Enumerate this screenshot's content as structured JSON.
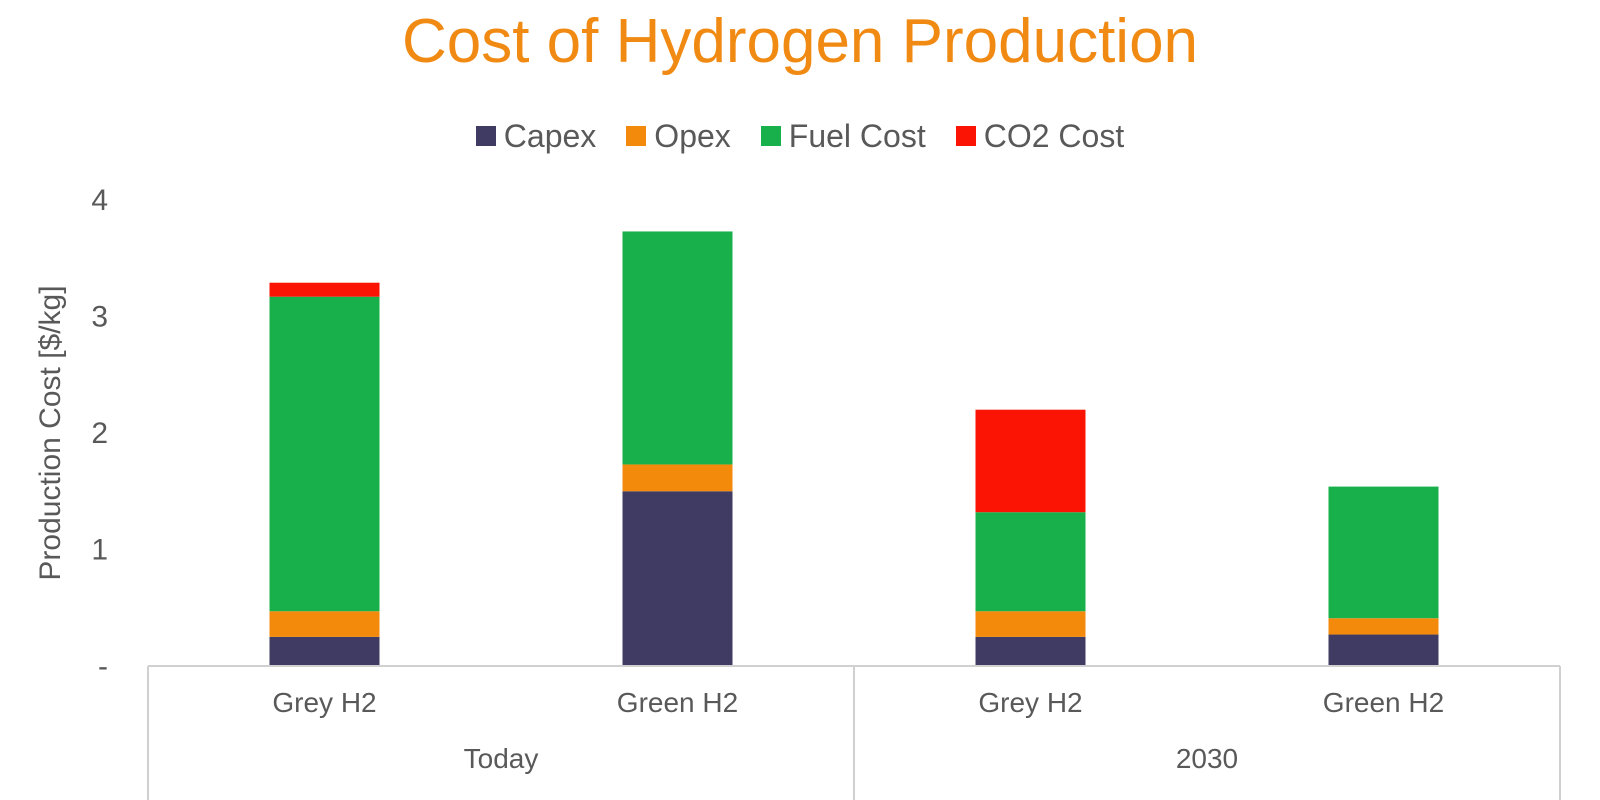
{
  "chart_data": {
    "type": "bar",
    "stacked": true,
    "title": "Cost of Hydrogen Production",
    "ylabel": "Production Cost [$/kg]",
    "xlabel": "",
    "ylim": [
      0,
      4
    ],
    "yticks": [
      {
        "value": 0,
        "label": "-"
      },
      {
        "value": 1,
        "label": "1"
      },
      {
        "value": 2,
        "label": "2"
      },
      {
        "value": 3,
        "label": "3"
      },
      {
        "value": 4,
        "label": "4"
      }
    ],
    "grid": false,
    "legend_position": "top",
    "categories": [
      "Grey H2",
      "Green H2",
      "Grey H2",
      "Green H2"
    ],
    "groups": [
      {
        "label": "Today",
        "categories": [
          "Grey H2",
          "Green H2"
        ]
      },
      {
        "label": "2030",
        "categories": [
          "Grey H2",
          "Green H2"
        ]
      }
    ],
    "series": [
      {
        "name": "Capex",
        "color": "#3f3b62",
        "values": [
          0.25,
          1.5,
          0.25,
          0.27
        ]
      },
      {
        "name": "Opex",
        "color": "#f48a0c",
        "values": [
          0.22,
          0.23,
          0.22,
          0.14
        ]
      },
      {
        "name": "Fuel Cost",
        "color": "#17b04a",
        "values": [
          2.7,
          2.0,
          0.85,
          1.13
        ]
      },
      {
        "name": "CO2 Cost",
        "color": "#fb1404",
        "values": [
          0.12,
          0.0,
          0.88,
          0.0
        ]
      }
    ]
  }
}
